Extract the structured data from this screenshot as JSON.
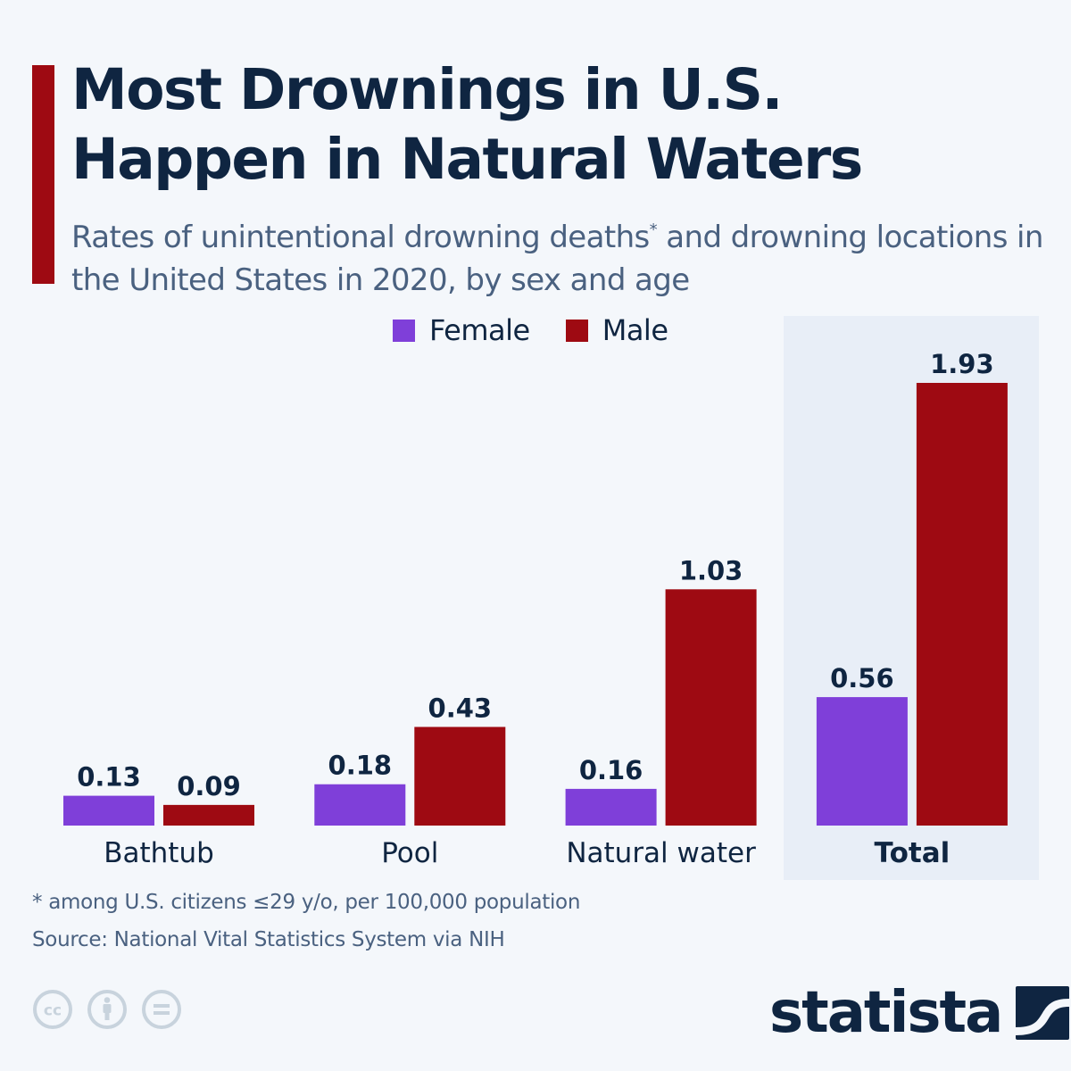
{
  "header": {
    "title_line1": "Most Drownings in U.S.",
    "title_line2": "Happen in Natural Waters",
    "subtitle_part1": "Rates of unintentional drowning deaths",
    "subtitle_sup": "*",
    "subtitle_part2": " and drowning locations in the United States in 2020, by sex and age"
  },
  "colors": {
    "accent": "#9e0a12",
    "female": "#7f3fd9",
    "male": "#9e0a12",
    "text_dark": "#0f2541",
    "text_muted": "#4a6180",
    "highlight_bg": "#e8eef7"
  },
  "chart_data": {
    "type": "bar",
    "title": "Most Drownings in U.S. Happen in Natural Waters",
    "subtitle": "Rates of unintentional drowning deaths* and drowning locations in the United States in 2020, by sex and age",
    "xlabel": "",
    "ylabel": "",
    "ylim": [
      0,
      1.93
    ],
    "grid": false,
    "legend": "top-center",
    "categories": [
      "Bathtub",
      "Pool",
      "Natural water",
      "Total"
    ],
    "highlighted_category": "Total",
    "series": [
      {
        "name": "Female",
        "color": "#7f3fd9",
        "values": [
          0.13,
          0.18,
          0.16,
          0.56
        ],
        "labels": [
          "0.13",
          "0.18",
          "0.16",
          "0.56"
        ]
      },
      {
        "name": "Male",
        "color": "#9e0a12",
        "values": [
          0.09,
          0.43,
          1.03,
          1.93
        ],
        "labels": [
          "0.09",
          "0.43",
          "1.03",
          "1.93"
        ]
      }
    ]
  },
  "footer": {
    "footnote": "* among U.S. citizens ≤29 y/o, per 100,000 population",
    "source": "Source: National Vital Statistics System via NIH",
    "license_icons": [
      "cc-icon",
      "attribution-icon",
      "no-derivatives-icon"
    ],
    "brand": "statista"
  }
}
